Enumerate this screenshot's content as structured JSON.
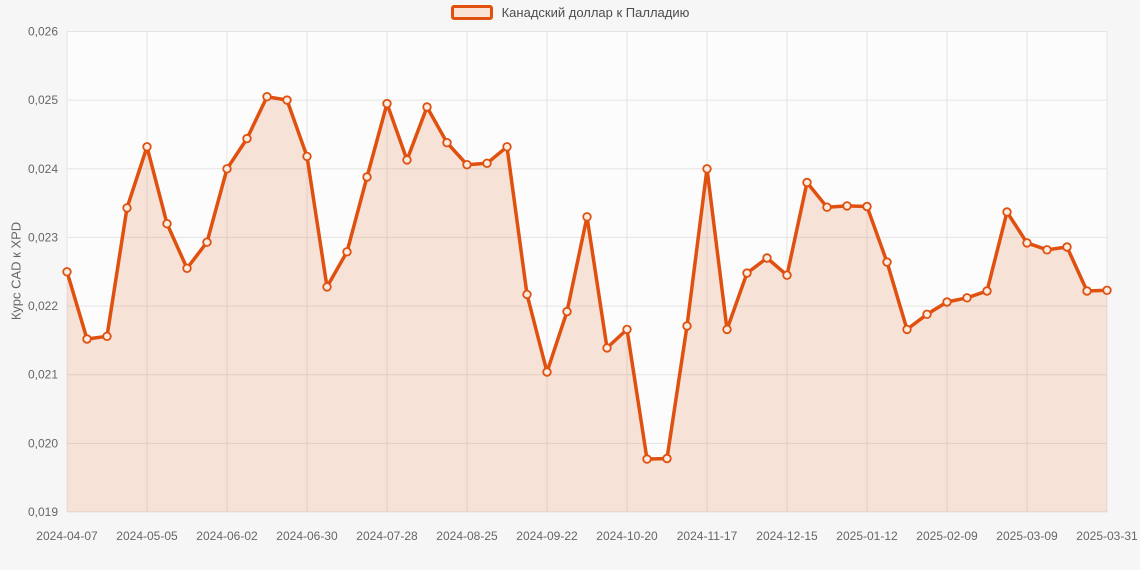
{
  "colors": {
    "page_bg": "#f6f6f6",
    "plot_bg": "#fcfcfc",
    "grid": "#e4e4e4",
    "line": "#e0500f",
    "fill": "rgba(224,80,15,0.15)",
    "marker_fill": "#f9ece2",
    "swatch_fill": "#f8e3d6",
    "tick_text": "#666666",
    "legend_text": "#4d4d4d",
    "y_title_text": "#666666"
  },
  "legend": {
    "label": "Канадский доллар к Палладию"
  },
  "chart_data": {
    "type": "area",
    "title": "",
    "xlabel": "",
    "ylabel": "Курс CAD к XPD",
    "ylim": [
      0.019,
      0.026
    ],
    "grid": true,
    "legend_position": "top-center",
    "y_ticks": [
      "0,019",
      "0,020",
      "0,021",
      "0,022",
      "0,023",
      "0,024",
      "0,025",
      "0,026"
    ],
    "x_tick_indices": [
      0,
      4,
      8,
      12,
      16,
      20,
      24,
      28,
      32,
      36,
      40,
      44,
      48,
      52
    ],
    "x_tick_labels": [
      "2024-04-07",
      "2024-05-05",
      "2024-06-02",
      "2024-06-30",
      "2024-07-28",
      "2024-08-25",
      "2024-09-22",
      "2024-10-20",
      "2024-11-17",
      "2024-12-15",
      "2025-01-12",
      "2025-02-09",
      "2025-03-09",
      "2025-03-31"
    ],
    "series": [
      {
        "name": "Канадский доллар к Палладию",
        "x": [
          "2024-04-07",
          "2024-04-14",
          "2024-04-21",
          "2024-04-28",
          "2024-05-05",
          "2024-05-12",
          "2024-05-19",
          "2024-05-26",
          "2024-06-02",
          "2024-06-09",
          "2024-06-16",
          "2024-06-23",
          "2024-06-30",
          "2024-07-07",
          "2024-07-14",
          "2024-07-21",
          "2024-07-28",
          "2024-08-04",
          "2024-08-11",
          "2024-08-18",
          "2024-08-25",
          "2024-09-01",
          "2024-09-08",
          "2024-09-15",
          "2024-09-22",
          "2024-09-29",
          "2024-10-06",
          "2024-10-13",
          "2024-10-20",
          "2024-10-27",
          "2024-11-03",
          "2024-11-10",
          "2024-11-17",
          "2024-11-24",
          "2024-12-01",
          "2024-12-08",
          "2024-12-15",
          "2024-12-22",
          "2024-12-29",
          "2025-01-05",
          "2025-01-12",
          "2025-01-19",
          "2025-01-26",
          "2025-02-02",
          "2025-02-09",
          "2025-02-16",
          "2025-02-23",
          "2025-03-02",
          "2025-03-09",
          "2025-03-16",
          "2025-03-23",
          "2025-03-30",
          "2025-03-31"
        ],
        "values": [
          0.0225,
          0.02152,
          0.02156,
          0.02343,
          0.02432,
          0.0232,
          0.02255,
          0.02293,
          0.024,
          0.02444,
          0.02505,
          0.025,
          0.02418,
          0.02228,
          0.02279,
          0.02388,
          0.02495,
          0.02413,
          0.0249,
          0.02438,
          0.02406,
          0.02408,
          0.02432,
          0.02217,
          0.02104,
          0.02192,
          0.0233,
          0.02139,
          0.02166,
          0.01977,
          0.01978,
          0.02171,
          0.024,
          0.02166,
          0.02248,
          0.0227,
          0.02245,
          0.0238,
          0.02344,
          0.02346,
          0.02345,
          0.02264,
          0.02166,
          0.02188,
          0.02206,
          0.02212,
          0.02222,
          0.02337,
          0.02292,
          0.02282,
          0.02286,
          0.02222,
          0.02223
        ]
      }
    ]
  }
}
